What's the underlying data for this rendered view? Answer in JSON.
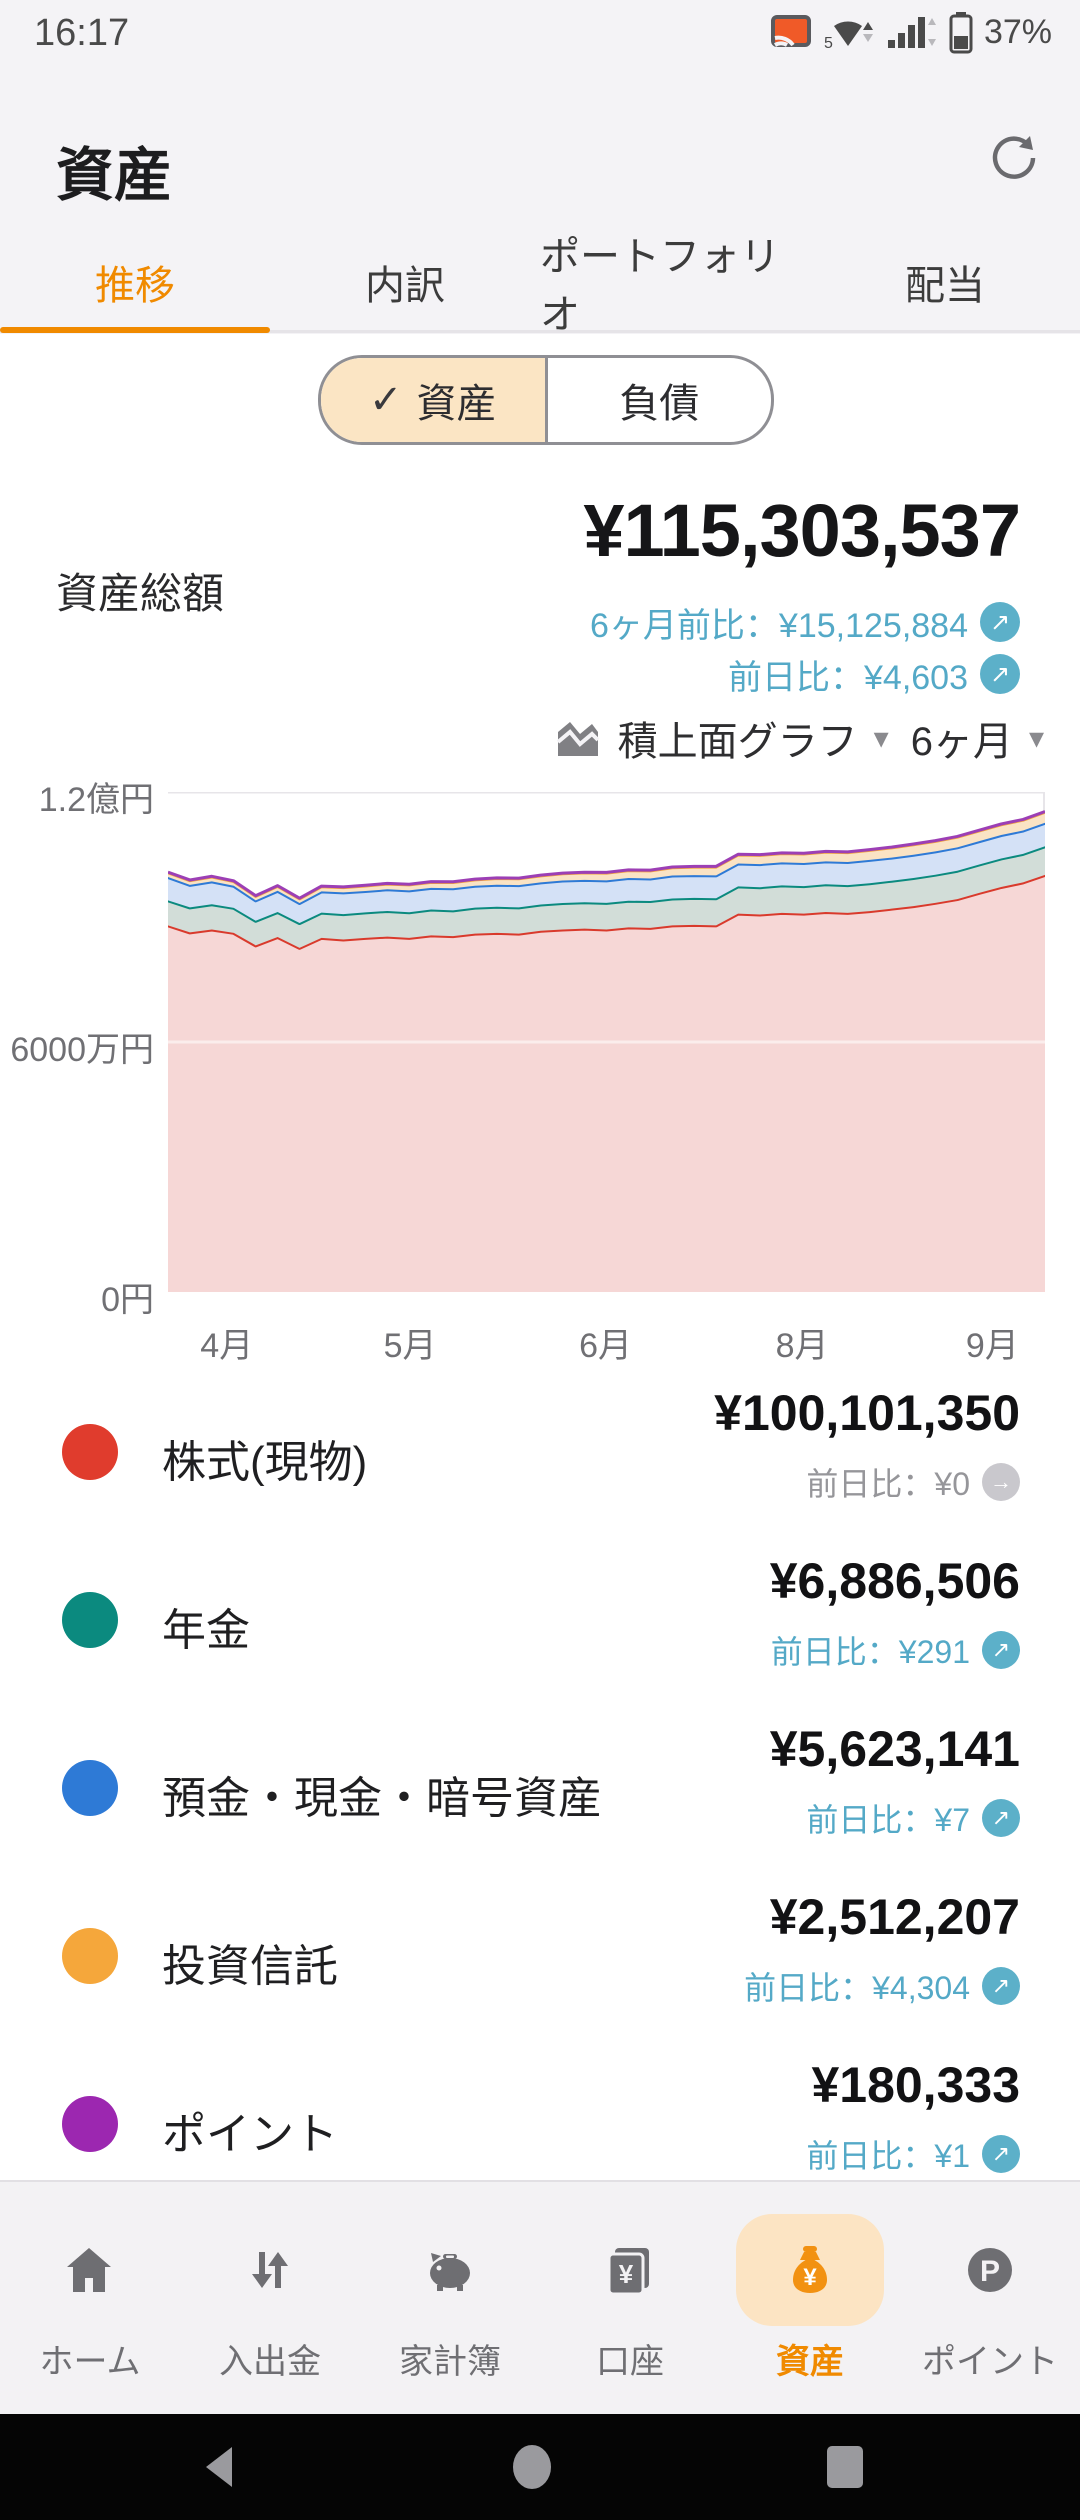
{
  "status_bar": {
    "time": "16:17",
    "battery": "37%",
    "icons": [
      "cast-icon",
      "wifi-5g-icon",
      "signal-icon",
      "battery-icon"
    ]
  },
  "header": {
    "title": "資産"
  },
  "tabs": [
    {
      "label": "推移",
      "active": true
    },
    {
      "label": "内訳",
      "active": false
    },
    {
      "label": "ポートフォリオ",
      "active": false
    },
    {
      "label": "配当",
      "active": false
    }
  ],
  "toggle": {
    "left": "資産",
    "right": "負債",
    "selected": "資産",
    "check": "✓"
  },
  "summary": {
    "label": "資産総額",
    "total": "¥115,303,537",
    "six_month_change": "6ヶ月前比：¥15,125,884",
    "day_change": "前日比：¥4,603"
  },
  "chart_controls": {
    "type_label": "積上面グラフ",
    "period_label": "6ヶ月",
    "caret": "▾"
  },
  "chart_data": {
    "type": "area",
    "stacked": true,
    "unit": "百万円",
    "title": "資産推移 6ヶ月 積上面グラフ",
    "ylim": [
      0,
      120
    ],
    "y_ticks": [
      {
        "label": "1.2億円",
        "value": 120
      },
      {
        "label": "6000万円",
        "value": 60
      },
      {
        "label": "0円",
        "value": 0
      }
    ],
    "x_ticks": [
      {
        "label": "4月",
        "pos": 0.067
      },
      {
        "label": "5月",
        "pos": 0.276
      },
      {
        "label": "6月",
        "pos": 0.499
      },
      {
        "label": "8月",
        "pos": 0.723
      },
      {
        "label": "9月",
        "pos": 0.94
      }
    ],
    "grid": true,
    "series": [
      {
        "name": "株式(現物)",
        "line": "#d93a2c",
        "fill": "#f6d7d6",
        "values": [
          88.0,
          86.3,
          87.0,
          86.2,
          83.2,
          85.2,
          82.6,
          85.0,
          84.6,
          85.0,
          85.3,
          85.0,
          85.6,
          85.4,
          86.0,
          86.2,
          86.0,
          86.7,
          87.0,
          87.2,
          87.0,
          87.5,
          87.4,
          88.0,
          88.1,
          88.0,
          90.8,
          90.6,
          91.0,
          90.8,
          91.2,
          91.0,
          91.4,
          92.0,
          92.6,
          93.4,
          94.3,
          95.8,
          97.2,
          98.3,
          100.1
        ]
      },
      {
        "name": "年金",
        "line": "#0b8a7f",
        "fill": "#d2ddd8",
        "values": [
          6.0,
          6.0,
          6.05,
          6.0,
          5.9,
          6.0,
          5.95,
          6.05,
          6.1,
          6.1,
          6.15,
          6.15,
          6.2,
          6.2,
          6.25,
          6.25,
          6.3,
          6.3,
          6.35,
          6.35,
          6.4,
          6.4,
          6.45,
          6.45,
          6.5,
          6.5,
          6.55,
          6.55,
          6.6,
          6.6,
          6.65,
          6.65,
          6.7,
          6.7,
          6.75,
          6.75,
          6.8,
          6.8,
          6.85,
          6.85,
          6.89
        ]
      },
      {
        "name": "預金・現金・暗号資産",
        "line": "#2e7ad6",
        "fill": "#d4e1f6",
        "values": [
          5.6,
          5.4,
          5.5,
          5.3,
          4.9,
          5.1,
          4.8,
          5.1,
          5.2,
          5.15,
          5.2,
          5.25,
          5.2,
          5.3,
          5.25,
          5.3,
          5.35,
          5.3,
          5.4,
          5.35,
          5.4,
          5.45,
          5.4,
          5.5,
          5.45,
          5.5,
          5.5,
          5.55,
          5.5,
          5.55,
          5.5,
          5.55,
          5.6,
          5.55,
          5.6,
          5.6,
          5.62,
          5.6,
          5.62,
          5.6,
          5.62
        ]
      },
      {
        "name": "投資信託",
        "line": "#f0a23f",
        "fill": "#fae3c4",
        "values": [
          1.0,
          1.02,
          1.05,
          1.0,
          0.95,
          1.05,
          1.0,
          1.1,
          1.15,
          1.2,
          1.25,
          1.3,
          1.32,
          1.38,
          1.42,
          1.48,
          1.52,
          1.58,
          1.62,
          1.68,
          1.72,
          1.78,
          1.82,
          1.88,
          1.92,
          1.98,
          2.02,
          2.08,
          2.12,
          2.18,
          2.22,
          2.26,
          2.3,
          2.34,
          2.38,
          2.4,
          2.43,
          2.45,
          2.47,
          2.49,
          2.51
        ]
      },
      {
        "name": "ポイント",
        "line": "#9c3fb5",
        "fill": "#ead6f0",
        "values": [
          0.17,
          0.17,
          0.17,
          0.17,
          0.17,
          0.17,
          0.17,
          0.17,
          0.17,
          0.17,
          0.17,
          0.17,
          0.17,
          0.17,
          0.17,
          0.17,
          0.17,
          0.17,
          0.17,
          0.17,
          0.18,
          0.18,
          0.18,
          0.18,
          0.18,
          0.18,
          0.18,
          0.18,
          0.18,
          0.18,
          0.18,
          0.18,
          0.18,
          0.18,
          0.18,
          0.18,
          0.18,
          0.18,
          0.18,
          0.18,
          0.18
        ]
      }
    ]
  },
  "legend": [
    {
      "name": "株式(現物)",
      "value": "¥100,101,350",
      "change": "前日比：¥0",
      "change_type": "flat",
      "arrow": "→",
      "color": "#e03c2d"
    },
    {
      "name": "年金",
      "value": "¥6,886,506",
      "change": "前日比：¥291",
      "change_type": "up",
      "arrow": "↗",
      "color": "#0b8a7f"
    },
    {
      "name": "預金・現金・暗号資産",
      "value": "¥5,623,141",
      "change": "前日比：¥7",
      "change_type": "up",
      "arrow": "↗",
      "color": "#2e7ad6"
    },
    {
      "name": "投資信託",
      "value": "¥2,512,207",
      "change": "前日比：¥4,304",
      "change_type": "up",
      "arrow": "↗",
      "color": "#f5a73b"
    },
    {
      "name": "ポイント",
      "value": "¥180,333",
      "change": "前日比：¥1",
      "change_type": "up",
      "arrow": "↗",
      "color": "#9c27b0"
    }
  ],
  "summary_badges": {
    "up_arrow": "↗"
  },
  "bottom_nav": [
    {
      "label": "ホーム",
      "icon": "home-icon",
      "active": false
    },
    {
      "label": "入出金",
      "icon": "transfer-icon",
      "active": false
    },
    {
      "label": "家計簿",
      "icon": "piggy-bank-icon",
      "active": false
    },
    {
      "label": "口座",
      "icon": "accounts-icon",
      "active": false
    },
    {
      "label": "資産",
      "icon": "money-bag-icon",
      "active": true
    },
    {
      "label": "ポイント",
      "icon": "points-icon",
      "active": false
    }
  ],
  "android_nav": {
    "back": "back",
    "home": "home",
    "recents": "recents"
  }
}
